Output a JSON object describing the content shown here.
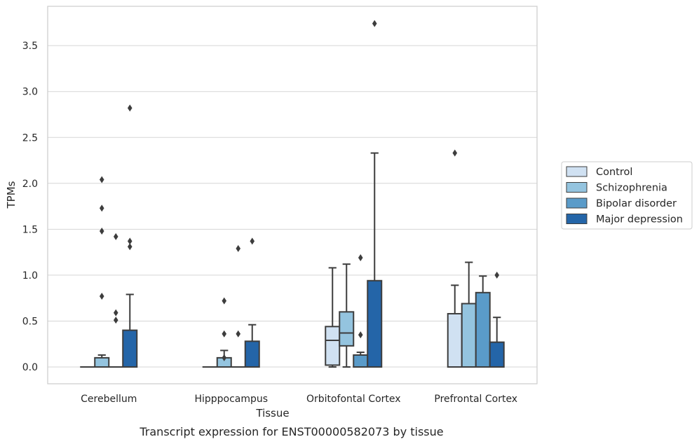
{
  "caption": "Transcript expression for ENST00000582073 by tissue",
  "chart_data": {
    "type": "box",
    "title": "",
    "xlabel": "Tissue",
    "ylabel": "TPMs",
    "ylim": [
      -0.18,
      3.92
    ],
    "yticks": [
      "0.0",
      "0.5",
      "1.0",
      "1.5",
      "2.0",
      "2.5",
      "3.0",
      "3.5"
    ],
    "grid": "horizontal",
    "legend_position": "right",
    "categories": [
      "Cerebellum",
      "Hipppocampus",
      "Orbitofontal Cortex",
      "Prefrontal Cortex"
    ],
    "series": [
      {
        "name": "Control",
        "color": "#d0e1f2",
        "boxes": [
          {
            "q1": 0,
            "median": 0,
            "q3": 0,
            "whislo": 0,
            "whishi": 0,
            "fliers": []
          },
          {
            "q1": 0,
            "median": 0,
            "q3": 0,
            "whislo": 0,
            "whishi": 0,
            "fliers": []
          },
          {
            "q1": 0.02,
            "median": 0.29,
            "q3": 0.44,
            "whislo": 0,
            "whishi": 1.08,
            "fliers": []
          },
          {
            "q1": 0,
            "median": 0,
            "q3": 0.58,
            "whislo": 0,
            "whishi": 0.89,
            "fliers": [
              2.33
            ]
          }
        ]
      },
      {
        "name": "Schizophrenia",
        "color": "#94c4df",
        "boxes": [
          {
            "q1": 0,
            "median": 0,
            "q3": 0.1,
            "whislo": 0,
            "whishi": 0.13,
            "fliers": [
              0.77,
              1.48,
              1.73,
              2.04
            ]
          },
          {
            "q1": 0,
            "median": 0,
            "q3": 0.1,
            "whislo": 0,
            "whishi": 0.18,
            "fliers": [
              0.1,
              0.36,
              0.72
            ]
          },
          {
            "q1": 0.23,
            "median": 0.37,
            "q3": 0.6,
            "whislo": 0,
            "whishi": 1.12,
            "fliers": []
          },
          {
            "q1": 0,
            "median": 0,
            "q3": 0.69,
            "whislo": 0,
            "whishi": 1.14,
            "fliers": []
          }
        ]
      },
      {
        "name": "Bipolar disorder",
        "color": "#5a9bc9",
        "boxes": [
          {
            "q1": 0,
            "median": 0,
            "q3": 0,
            "whislo": 0,
            "whishi": 0,
            "fliers": [
              0.51,
              0.59,
              1.42
            ]
          },
          {
            "q1": 0,
            "median": 0,
            "q3": 0,
            "whislo": 0,
            "whishi": 0,
            "fliers": [
              0.36,
              1.29
            ]
          },
          {
            "q1": 0,
            "median": 0,
            "q3": 0.13,
            "whislo": 0,
            "whishi": 0.16,
            "fliers": [
              0.35,
              1.19
            ]
          },
          {
            "q1": 0,
            "median": 0,
            "q3": 0.81,
            "whislo": 0,
            "whishi": 0.99,
            "fliers": []
          }
        ]
      },
      {
        "name": "Major depression",
        "color": "#2465a8",
        "boxes": [
          {
            "q1": 0,
            "median": 0,
            "q3": 0.4,
            "whislo": 0,
            "whishi": 0.79,
            "fliers": [
              1.31,
              1.37,
              2.82
            ]
          },
          {
            "q1": 0,
            "median": 0,
            "q3": 0.28,
            "whislo": 0,
            "whishi": 0.46,
            "fliers": [
              1.37
            ]
          },
          {
            "q1": 0,
            "median": 0,
            "q3": 0.94,
            "whislo": 0,
            "whishi": 2.33,
            "fliers": [
              3.74
            ]
          },
          {
            "q1": 0,
            "median": 0,
            "q3": 0.27,
            "whislo": 0,
            "whishi": 0.54,
            "fliers": [
              1.0
            ]
          }
        ]
      }
    ]
  }
}
